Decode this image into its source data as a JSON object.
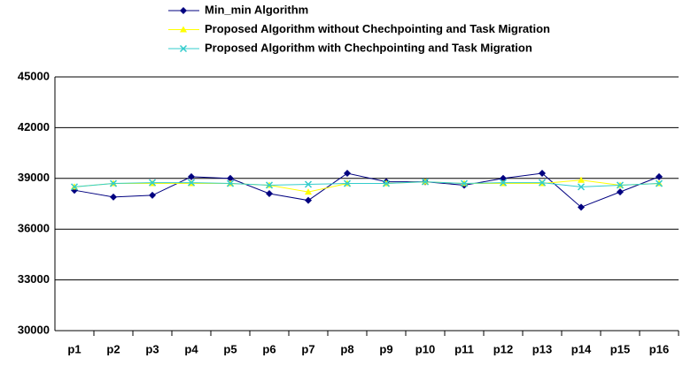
{
  "chart_data": {
    "type": "line",
    "categories": [
      "p1",
      "p2",
      "p3",
      "p4",
      "p5",
      "p6",
      "p7",
      "p8",
      "p9",
      "p10",
      "p11",
      "p12",
      "p13",
      "p14",
      "p15",
      "p16"
    ],
    "series": [
      {
        "name": "Min_min Algorithm",
        "color": "#000080",
        "marker": "diamond",
        "values": [
          38300,
          37900,
          38000,
          39100,
          39000,
          38100,
          37700,
          39300,
          38800,
          38800,
          38600,
          39000,
          39300,
          37300,
          38200,
          39100
        ]
      },
      {
        "name": "Proposed Algorithm without Chechpointing and Task Migration",
        "color": "#ffff00",
        "marker": "triangle",
        "values": [
          38500,
          38700,
          38700,
          38700,
          38700,
          38600,
          38200,
          38700,
          38700,
          38800,
          38700,
          38700,
          38700,
          38900,
          38600,
          38700
        ]
      },
      {
        "name": "Proposed Algorithm with Chechpointing and Task Migration",
        "color": "#33cccc",
        "marker": "x",
        "values": [
          38500,
          38700,
          38750,
          38750,
          38700,
          38600,
          38650,
          38700,
          38700,
          38800,
          38700,
          38750,
          38750,
          38500,
          38600,
          38700
        ]
      }
    ],
    "ylim": [
      30000,
      45000
    ],
    "yticks": [
      30000,
      33000,
      36000,
      39000,
      42000,
      45000
    ],
    "grid": true
  }
}
